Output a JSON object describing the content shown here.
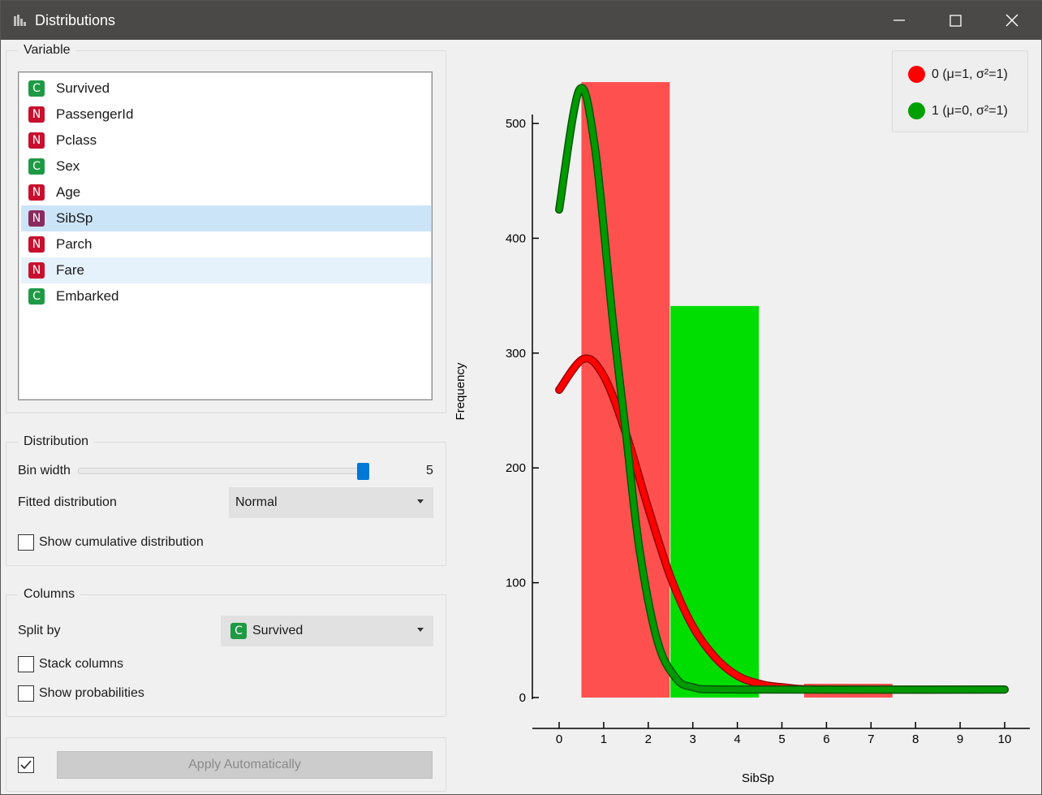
{
  "window": {
    "title": "Distributions"
  },
  "variable_group": {
    "title": "Variable",
    "items": [
      {
        "type": "C",
        "label": "Survived"
      },
      {
        "type": "N",
        "label": "PassengerId"
      },
      {
        "type": "N",
        "label": "Pclass"
      },
      {
        "type": "C",
        "label": "Sex"
      },
      {
        "type": "N",
        "label": "Age"
      },
      {
        "type": "N",
        "label": "SibSp",
        "selected": true
      },
      {
        "type": "N",
        "label": "Parch"
      },
      {
        "type": "N",
        "label": "Fare",
        "hovered": true
      },
      {
        "type": "C",
        "label": "Embarked"
      }
    ]
  },
  "distribution_group": {
    "title": "Distribution",
    "bin_width_label": "Bin width",
    "bin_width_value": "5",
    "bin_width_slider_fraction": 0.98,
    "fitted_label": "Fitted distribution",
    "fitted_value": "Normal",
    "cumulative_label": "Show cumulative distribution",
    "cumulative_checked": false
  },
  "columns_group": {
    "title": "Columns",
    "split_label": "Split by",
    "split_badge": "C",
    "split_value": "Survived",
    "stack_label": "Stack columns",
    "stack_checked": false,
    "prob_label": "Show probabilities",
    "prob_checked": false
  },
  "apply": {
    "auto_checked": true,
    "button_label": "Apply Automatically"
  },
  "legend": {
    "items": [
      {
        "label": "0 (μ=1, σ²=1)",
        "color": "#ff0000"
      },
      {
        "label": "1 (μ=0, σ²=1)",
        "color": "#00a000"
      }
    ]
  },
  "chart_data": {
    "type": "bar",
    "xlabel": "SibSp",
    "ylabel": "Frequency",
    "xlim": [
      -0.6,
      10.5
    ],
    "ylim": [
      0,
      540
    ],
    "x_ticks": [
      0,
      1,
      2,
      3,
      4,
      5,
      6,
      7,
      8,
      9,
      10
    ],
    "y_ticks": [
      0,
      100,
      200,
      300,
      400,
      500
    ],
    "bars": [
      {
        "series": "0",
        "x0": 0.5,
        "x1": 2.5,
        "value": 536,
        "color": "#ff5050"
      },
      {
        "series": "1",
        "x0": 2.5,
        "x1": 4.5,
        "value": 341,
        "color": "#00dd00"
      },
      {
        "series": "0",
        "x0": 5.5,
        "x1": 7.5,
        "value": 12,
        "color": "#ff5050"
      }
    ],
    "curves": [
      {
        "series": "0",
        "color": "#ff0000",
        "peak_value": 295,
        "peak_x": 0.55,
        "points": [
          [
            0,
            268
          ],
          [
            0.55,
            295
          ],
          [
            1,
            280
          ],
          [
            1.5,
            230
          ],
          [
            2,
            165
          ],
          [
            2.5,
            105
          ],
          [
            3,
            62
          ],
          [
            3.5,
            35
          ],
          [
            4,
            19
          ],
          [
            4.5,
            12
          ],
          [
            5,
            9
          ],
          [
            6,
            7
          ],
          [
            10,
            7
          ]
        ]
      },
      {
        "series": "1",
        "color": "#009900",
        "peak_value": 529,
        "peak_x": 0.45,
        "points": [
          [
            0,
            425
          ],
          [
            0.45,
            529
          ],
          [
            0.8,
            480
          ],
          [
            1.2,
            330
          ],
          [
            1.5,
            230
          ],
          [
            1.8,
            130
          ],
          [
            2.2,
            50
          ],
          [
            2.6,
            18
          ],
          [
            3,
            9
          ],
          [
            4,
            7
          ],
          [
            10,
            7
          ]
        ]
      }
    ]
  }
}
